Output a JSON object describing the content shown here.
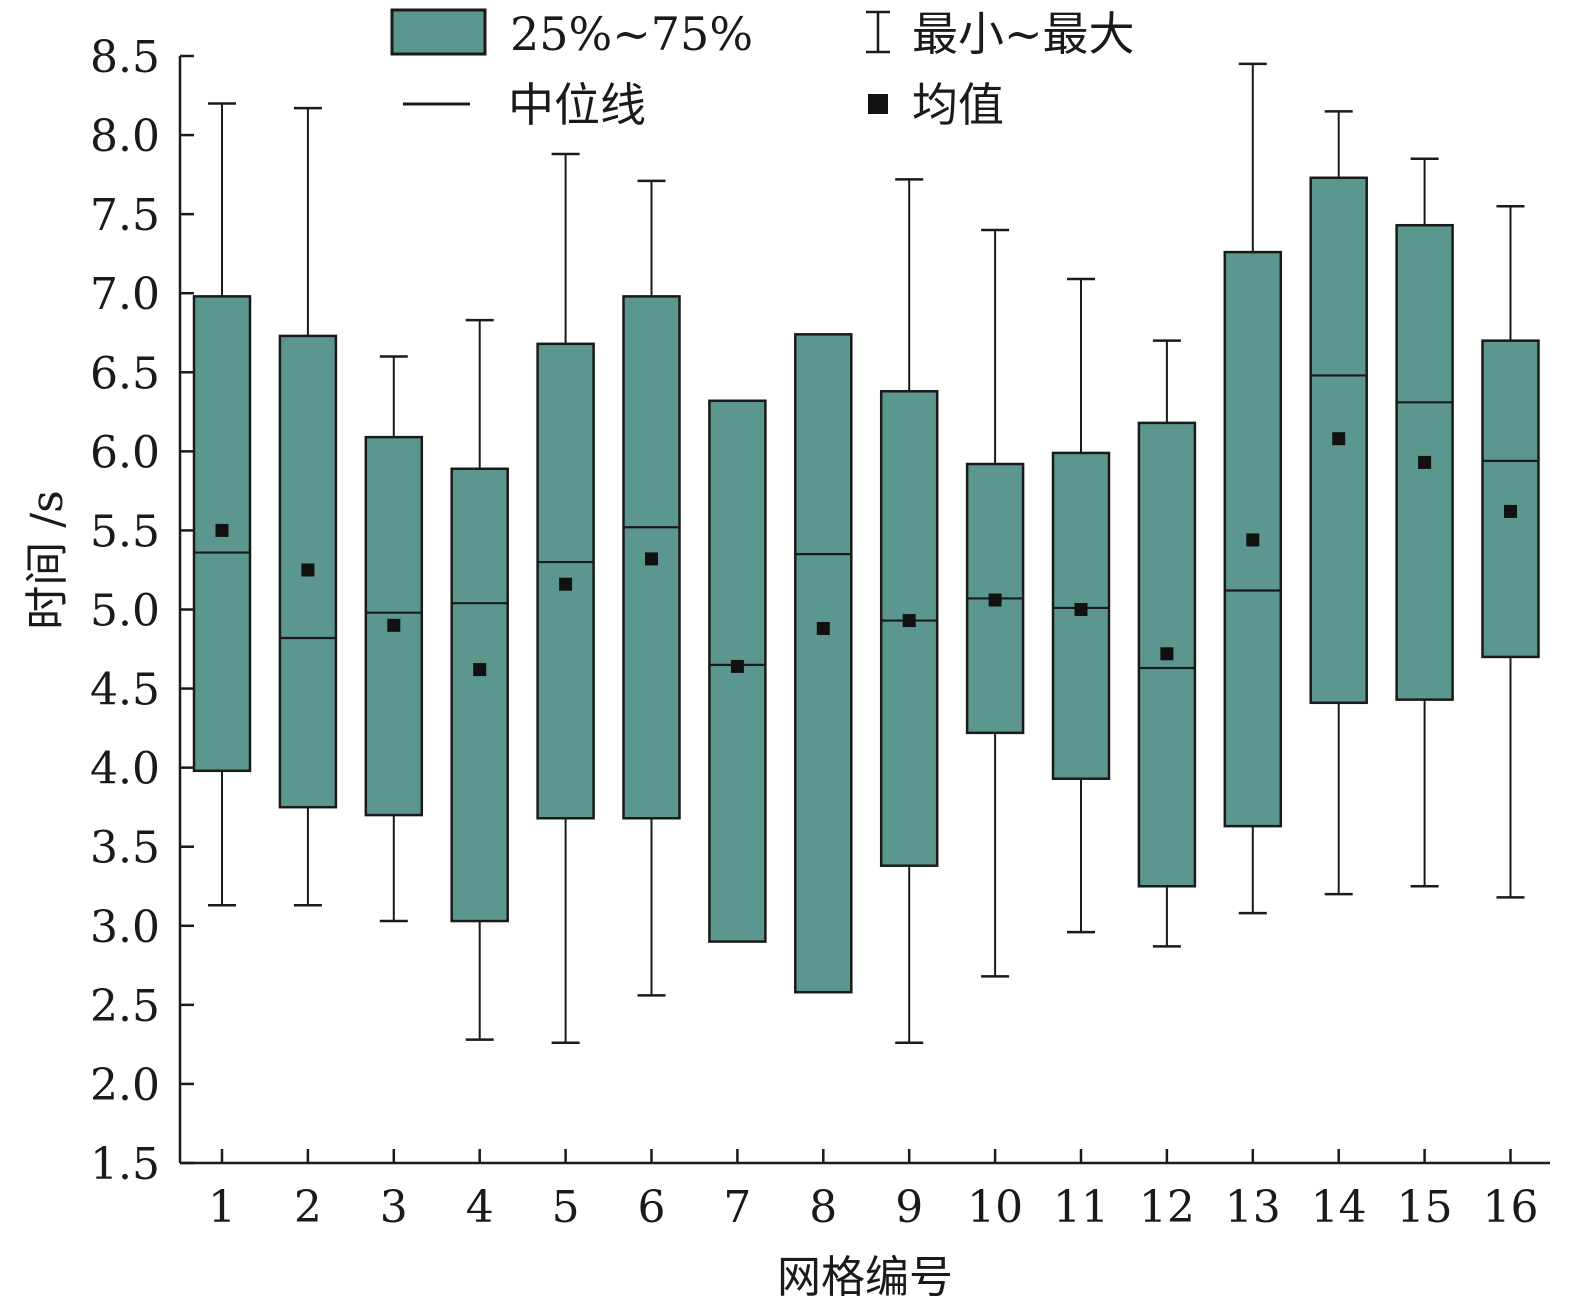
{
  "chart_data": {
    "type": "box",
    "xlabel": "网格编号",
    "ylabel": "时间 /s",
    "ylim": [
      1.5,
      8.5
    ],
    "yticks": [
      "1.5",
      "2.0",
      "2.5",
      "3.0",
      "3.5",
      "4.0",
      "4.5",
      "5.0",
      "5.5",
      "6.0",
      "6.5",
      "7.0",
      "7.5",
      "8.0",
      "8.5"
    ],
    "categories": [
      "1",
      "2",
      "3",
      "4",
      "5",
      "6",
      "7",
      "8",
      "9",
      "10",
      "11",
      "12",
      "13",
      "14",
      "15",
      "16"
    ],
    "series": [
      {
        "category": "1",
        "min": 3.13,
        "q1": 3.98,
        "median": 5.36,
        "q3": 6.98,
        "max": 8.2,
        "mean": 5.5
      },
      {
        "category": "2",
        "min": 3.13,
        "q1": 3.75,
        "median": 4.82,
        "q3": 6.73,
        "max": 8.17,
        "mean": 5.25
      },
      {
        "category": "3",
        "min": 3.03,
        "q1": 3.7,
        "median": 4.98,
        "q3": 6.09,
        "max": 6.6,
        "mean": 4.9
      },
      {
        "category": "4",
        "min": 2.28,
        "q1": 3.03,
        "median": 5.04,
        "q3": 5.89,
        "max": 6.83,
        "mean": 4.62
      },
      {
        "category": "5",
        "min": 2.26,
        "q1": 3.68,
        "median": 5.3,
        "q3": 6.68,
        "max": 7.88,
        "mean": 5.16
      },
      {
        "category": "6",
        "min": 2.56,
        "q1": 3.68,
        "median": 5.52,
        "q3": 6.98,
        "max": 7.71,
        "mean": 5.32
      },
      {
        "category": "7",
        "min": 2.9,
        "q1": 2.9,
        "median": 4.65,
        "q3": 6.32,
        "max": 6.32,
        "mean": 4.64
      },
      {
        "category": "8",
        "min": 2.58,
        "q1": 2.58,
        "median": 5.35,
        "q3": 6.74,
        "max": 6.74,
        "mean": 4.88
      },
      {
        "category": "9",
        "min": 2.26,
        "q1": 3.38,
        "median": 4.93,
        "q3": 6.38,
        "max": 7.72,
        "mean": 4.93
      },
      {
        "category": "10",
        "min": 2.68,
        "q1": 4.22,
        "median": 5.07,
        "q3": 5.92,
        "max": 7.4,
        "mean": 5.06
      },
      {
        "category": "11",
        "min": 2.96,
        "q1": 3.93,
        "median": 5.01,
        "q3": 5.99,
        "max": 7.09,
        "mean": 5.0
      },
      {
        "category": "12",
        "min": 2.87,
        "q1": 3.25,
        "median": 4.63,
        "q3": 6.18,
        "max": 6.7,
        "mean": 4.72
      },
      {
        "category": "13",
        "min": 3.08,
        "q1": 3.63,
        "median": 5.12,
        "q3": 7.26,
        "max": 8.45,
        "mean": 5.44
      },
      {
        "category": "14",
        "min": 3.2,
        "q1": 4.41,
        "median": 6.48,
        "q3": 7.73,
        "max": 8.15,
        "mean": 6.08
      },
      {
        "category": "15",
        "min": 3.25,
        "q1": 4.43,
        "median": 6.31,
        "q3": 7.43,
        "max": 7.85,
        "mean": 5.93
      },
      {
        "category": "16",
        "min": 3.18,
        "q1": 4.7,
        "median": 5.94,
        "q3": 6.7,
        "max": 7.55,
        "mean": 5.62
      }
    ],
    "legend": {
      "placement": "top",
      "items": [
        {
          "key": "box",
          "label": "25%~75%"
        },
        {
          "key": "whisker",
          "label": "最小~最大"
        },
        {
          "key": "median",
          "label": "中位线"
        },
        {
          "key": "mean",
          "label": "均值"
        }
      ]
    },
    "colors": {
      "box_fill": "#5b968f",
      "stroke": "#1a1a1a",
      "mean_marker": "#111111"
    },
    "grid": false
  }
}
